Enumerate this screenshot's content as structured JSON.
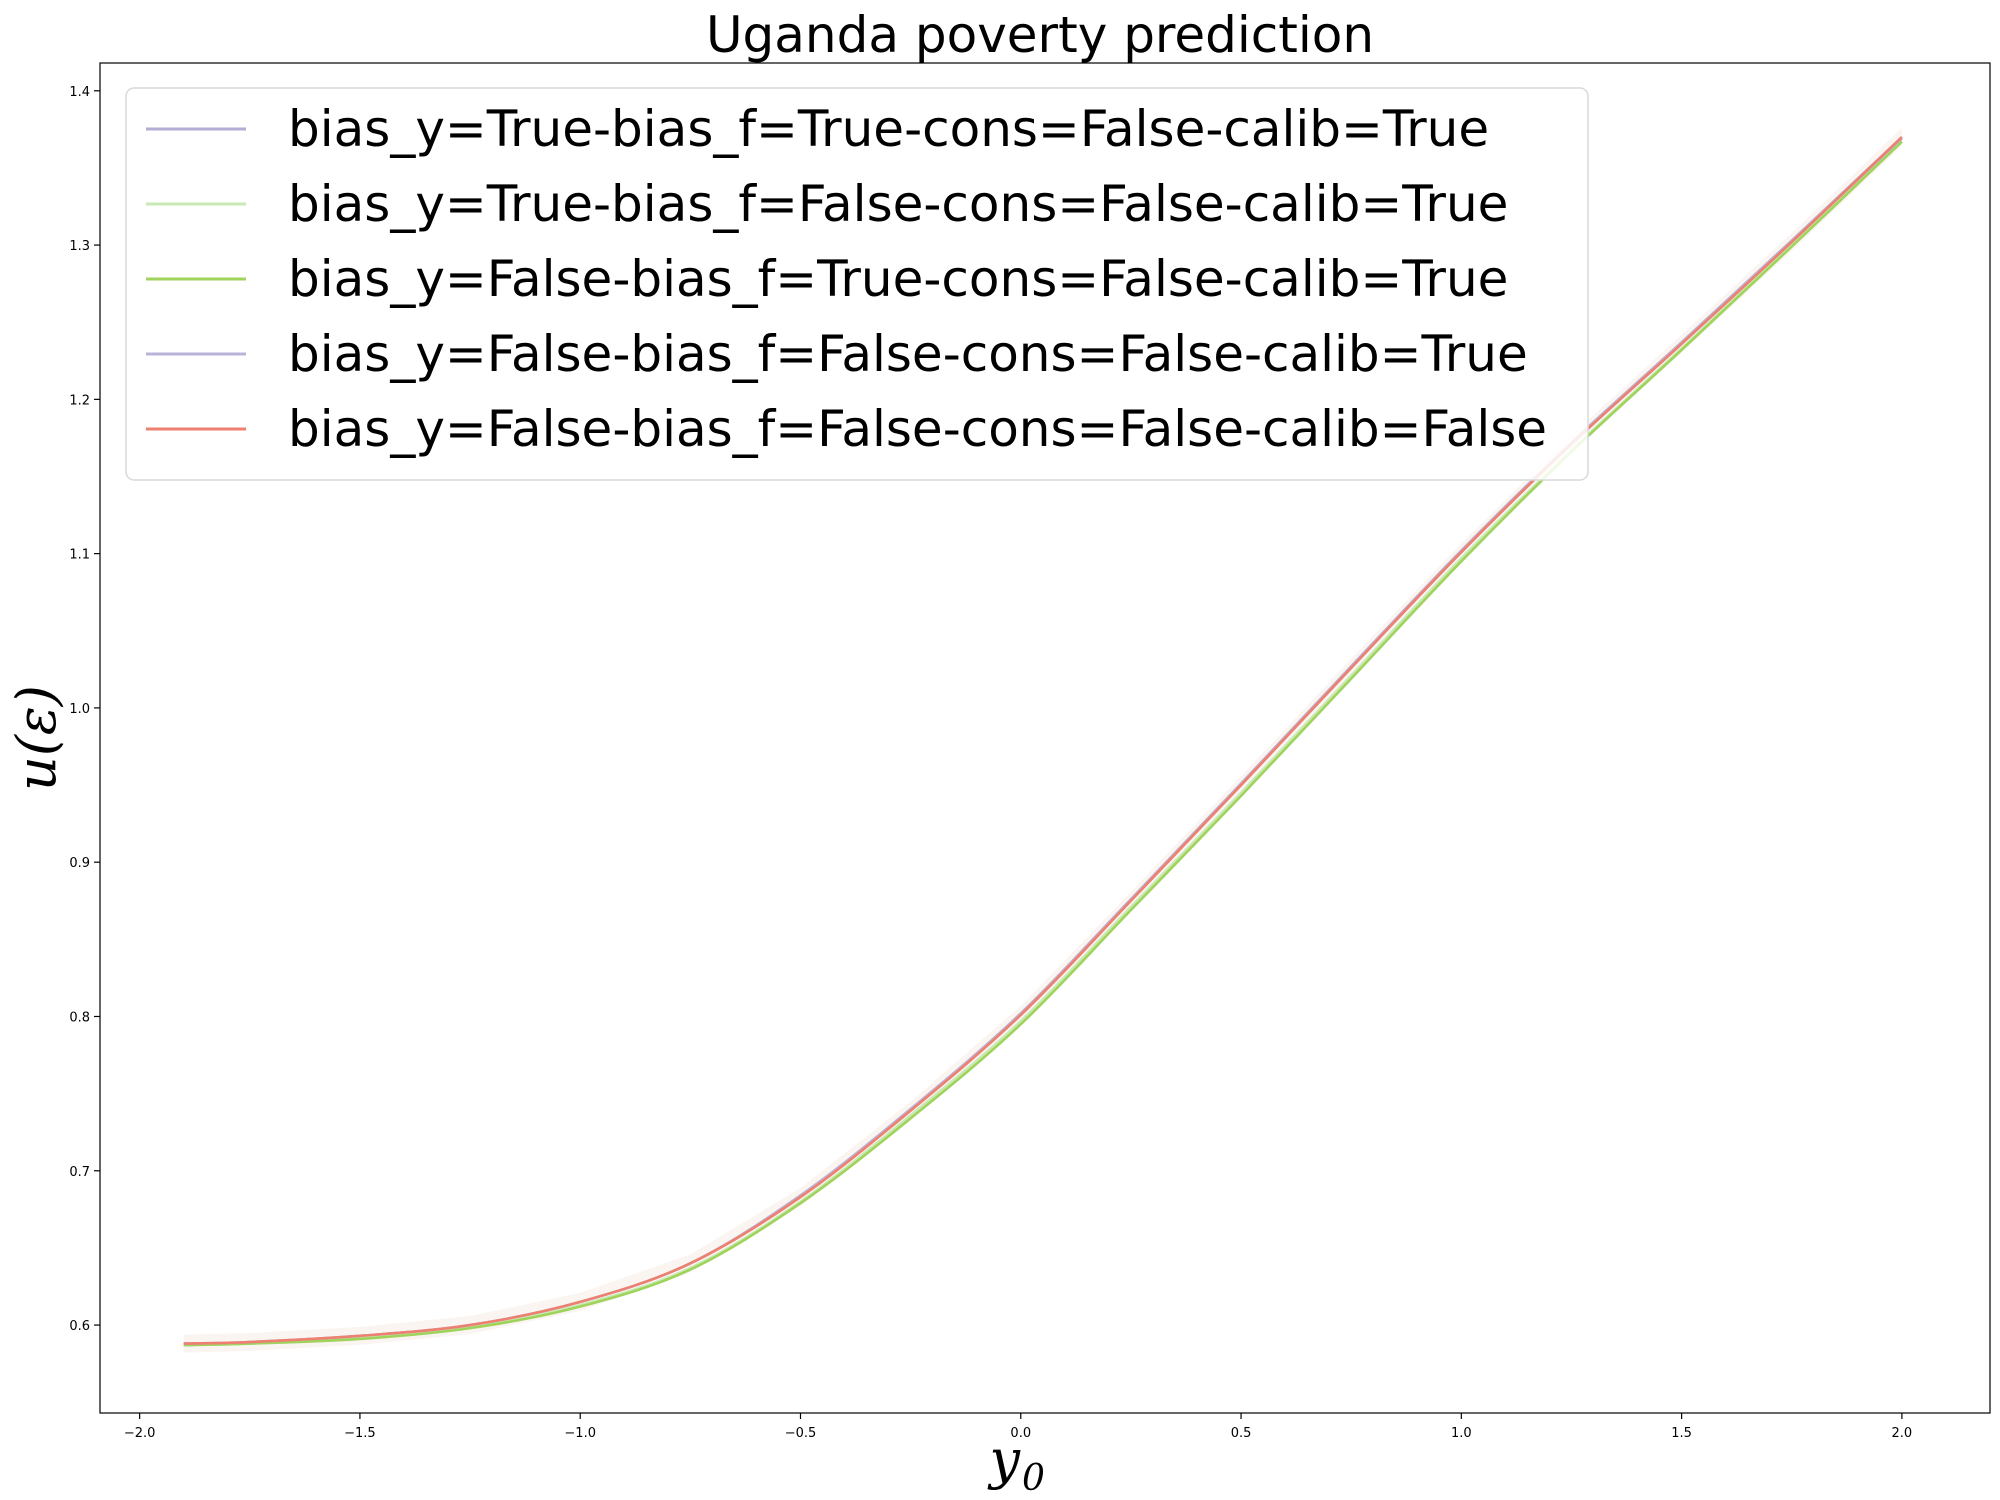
{
  "chart_data": {
    "type": "line",
    "title": "Uganda poverty prediction",
    "xlabel": "y",
    "xlabel_sub": "0",
    "ylabel": "u(ε)",
    "xlim": [
      -2.09,
      2.2
    ],
    "ylim": [
      0.543,
      1.418
    ],
    "x_ticks": [
      -2.0,
      -1.5,
      -1.0,
      -0.5,
      0.0,
      0.5,
      1.0,
      1.5,
      2.0
    ],
    "x_tick_labels": [
      "−2.0",
      "−1.5",
      "−1.0",
      "−0.5",
      "0.0",
      "0.5",
      "1.0",
      "1.5",
      "2.0"
    ],
    "y_ticks": [
      0.6,
      0.7,
      0.8,
      0.9,
      1.0,
      1.1,
      1.2,
      1.3,
      1.4
    ],
    "y_tick_labels": [
      "0.6",
      "0.7",
      "0.8",
      "0.9",
      "1.0",
      "1.1",
      "1.2",
      "1.3",
      "1.4"
    ],
    "grid": false,
    "legend_position": "top-left",
    "x": [
      -1.9,
      -1.75,
      -1.5,
      -1.25,
      -1.0,
      -0.75,
      -0.5,
      -0.25,
      0.0,
      0.25,
      0.5,
      0.75,
      1.0,
      1.25,
      1.5,
      1.75,
      2.0
    ],
    "series": [
      {
        "name": "bias_y=True-bias_f=True-cons=False-calib=True",
        "color": "#b4aed6",
        "values": [
          0.588,
          0.589,
          0.593,
          0.6,
          0.615,
          0.64,
          0.684,
          0.74,
          0.802,
          0.876,
          0.95,
          1.026,
          1.101,
          1.171,
          1.236,
          1.302,
          1.369
        ]
      },
      {
        "name": "bias_y=True-bias_f=False-cons=False-calib=True",
        "color": "#c9eab4",
        "values": [
          0.587,
          0.588,
          0.592,
          0.599,
          0.613,
          0.637,
          0.68,
          0.736,
          0.797,
          0.871,
          0.945,
          1.021,
          1.097,
          1.167,
          1.233,
          1.3,
          1.367
        ]
      },
      {
        "name": "bias_y=False-bias_f=True-cons=False-calib=True",
        "color": "#9fd35c",
        "values": [
          0.587,
          0.588,
          0.591,
          0.598,
          0.612,
          0.636,
          0.679,
          0.734,
          0.795,
          0.869,
          0.943,
          1.019,
          1.095,
          1.166,
          1.232,
          1.299,
          1.367
        ]
      },
      {
        "name": "bias_y=False-bias_f=False-cons=False-calib=True",
        "color": "#b9b3d8",
        "values": [
          0.588,
          0.589,
          0.593,
          0.6,
          0.615,
          0.64,
          0.684,
          0.74,
          0.802,
          0.876,
          0.951,
          1.027,
          1.102,
          1.172,
          1.237,
          1.303,
          1.37
        ]
      },
      {
        "name": "bias_y=False-bias_f=False-cons=False-calib=False",
        "color": "#ee8070",
        "values": [
          0.588,
          0.589,
          0.593,
          0.6,
          0.615,
          0.64,
          0.683,
          0.739,
          0.801,
          0.875,
          0.95,
          1.026,
          1.101,
          1.171,
          1.236,
          1.302,
          1.37
        ]
      }
    ]
  }
}
